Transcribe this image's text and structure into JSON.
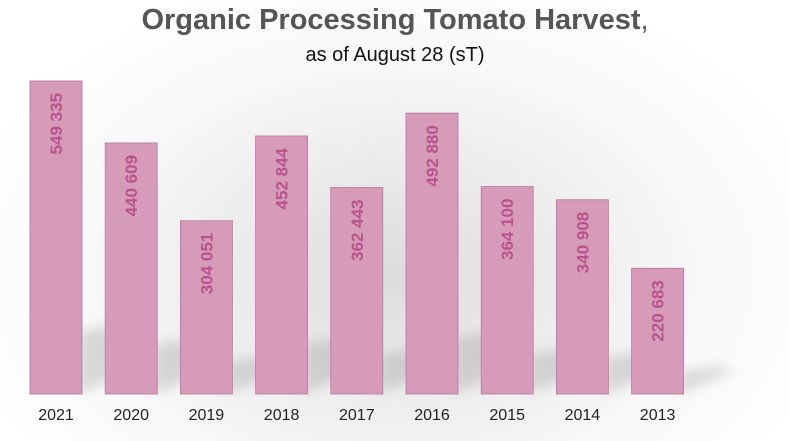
{
  "chart_data": {
    "type": "bar",
    "title": "Organic Processing Tomato Harvest",
    "title_suffix": ",",
    "subtitle": "as of August 28 (sT)",
    "categories": [
      "2021",
      "2020",
      "2019",
      "2018",
      "2017",
      "2016",
      "2015",
      "2014",
      "2013"
    ],
    "values": [
      549335,
      440609,
      304051,
      452844,
      362443,
      492880,
      364100,
      340908,
      220683
    ],
    "value_labels": [
      "549 335",
      "440 609",
      "304 051",
      "452 844",
      "362 443",
      "492 880",
      "364 100",
      "340 908",
      "220 683"
    ],
    "xlabel": "",
    "ylabel": "",
    "ylim": [
      0,
      560000
    ],
    "grid": false,
    "legend": "none",
    "colors": {
      "bar": "#d59bb8",
      "bar_border": "#b8779a",
      "value_label": "#b9528a",
      "title": "#555555"
    }
  }
}
